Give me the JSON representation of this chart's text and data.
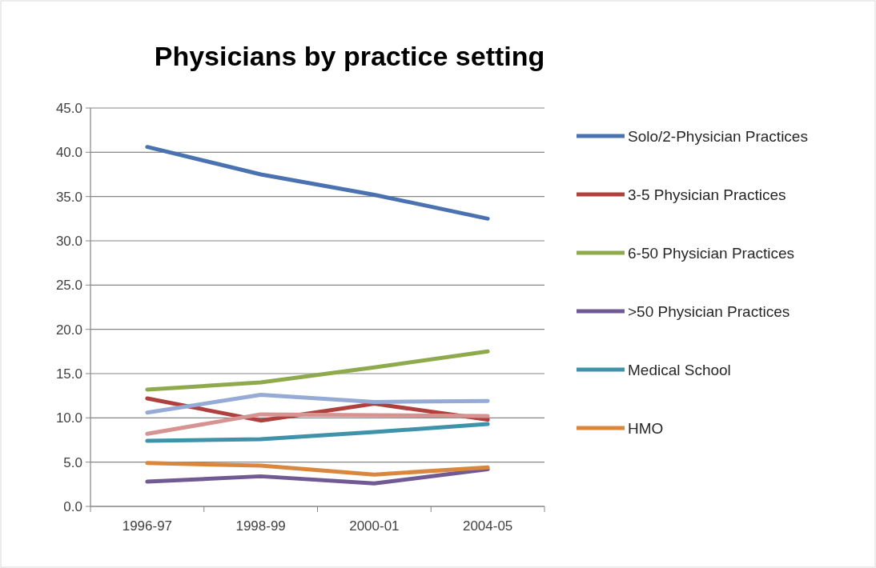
{
  "chart_data": {
    "type": "line",
    "title": "Physicians by practice setting",
    "categories": [
      "1996-97",
      "1998-99",
      "2000-01",
      "2004-05"
    ],
    "ylim": [
      0,
      45
    ],
    "yticks": [
      {
        "value": 0,
        "label": "0.0"
      },
      {
        "value": 5,
        "label": "5.0"
      },
      {
        "value": 10,
        "label": "10.0"
      },
      {
        "value": 15,
        "label": "15.0"
      },
      {
        "value": 20,
        "label": "20.0"
      },
      {
        "value": 25,
        "label": "25.0"
      },
      {
        "value": 30,
        "label": "30.0"
      },
      {
        "value": 35,
        "label": "35.0"
      },
      {
        "value": 40,
        "label": "40.0"
      },
      {
        "value": 45,
        "label": "45.0"
      }
    ],
    "grid": "y",
    "legend": "right",
    "series": [
      {
        "name": "Solo/2-Physician Practices",
        "color": "#4a72b0",
        "values": [
          40.6,
          37.5,
          35.2,
          32.5
        ]
      },
      {
        "name": "3-5 Physician Practices",
        "color": "#b0403e",
        "values": [
          12.2,
          9.7,
          11.6,
          9.8
        ]
      },
      {
        "name": "6-50 Physician Practices",
        "color": "#8faa4c",
        "values": [
          13.2,
          14.0,
          15.7,
          17.5
        ]
      },
      {
        "name": ">50 Physician Practices",
        "color": "#715a94",
        "values": [
          2.8,
          3.4,
          2.6,
          4.2
        ]
      },
      {
        "name": "Medical School",
        "color": "#3e93aa",
        "values": [
          7.4,
          7.6,
          8.4,
          9.3
        ]
      },
      {
        "name": "HMO",
        "color": "#d9873e",
        "values": [
          4.9,
          4.6,
          3.6,
          4.4
        ]
      },
      {
        "color": "#95aad4",
        "values": [
          10.6,
          12.6,
          11.8,
          11.9
        ]
      },
      {
        "color": "#d69391",
        "values": [
          8.2,
          10.4,
          10.3,
          10.2
        ]
      }
    ]
  }
}
